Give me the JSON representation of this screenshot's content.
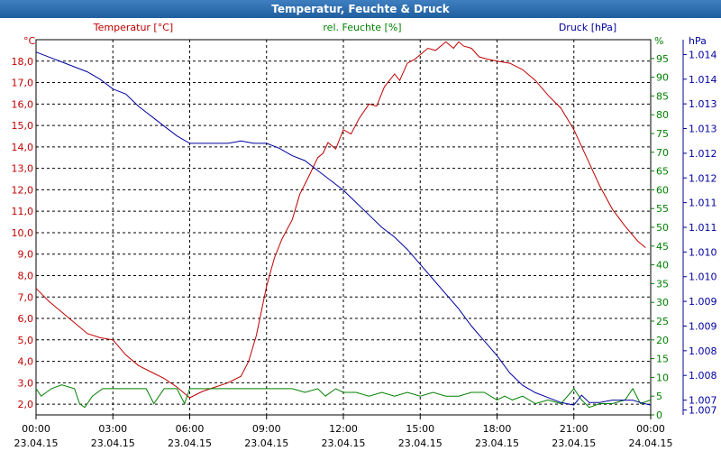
{
  "window": {
    "title": "Temperatur, Feuchte & Druck"
  },
  "chart_data": {
    "type": "line",
    "title": "Temperatur, Feuchte & Druck",
    "x_ticks": [
      {
        "t": 0,
        "time": "00:00",
        "date": "23.04.15"
      },
      {
        "t": 3,
        "time": "03:00",
        "date": "23.04.15"
      },
      {
        "t": 6,
        "time": "06:00",
        "date": "23.04.15"
      },
      {
        "t": 9,
        "time": "09:00",
        "date": "23.04.15"
      },
      {
        "t": 12,
        "time": "12:00",
        "date": "23.04.15"
      },
      {
        "t": 15,
        "time": "15:00",
        "date": "23.04.15"
      },
      {
        "t": 18,
        "time": "18:00",
        "date": "23.04.15"
      },
      {
        "t": 21,
        "time": "21:00",
        "date": "23.04.15"
      },
      {
        "t": 24,
        "time": "00:00",
        "date": "24.04.15"
      }
    ],
    "xlim": [
      0,
      24
    ],
    "axes": {
      "left": {
        "unit": "°C",
        "label": "Temperatur [°C]",
        "color": "#c00000",
        "ylim": [
          1.5,
          19.0
        ],
        "ticks": [
          "18,0",
          "17,0",
          "16,0",
          "15,0",
          "14,0",
          "13,0",
          "12,0",
          "11,0",
          "10,0",
          "9,0",
          "8,0",
          "7,0",
          "6,0",
          "5,0",
          "4,0",
          "3,0",
          "2,0"
        ],
        "tick_values": [
          18,
          17,
          16,
          15,
          14,
          13,
          12,
          11,
          10,
          9,
          8,
          7,
          6,
          5,
          4,
          3,
          2
        ]
      },
      "middle": {
        "unit": "%",
        "label": "rel. Feuchte [%]",
        "color": "#008000",
        "ylim": [
          0,
          100
        ],
        "ticks": [
          "95",
          "90",
          "85",
          "80",
          "75",
          "70",
          "65",
          "60",
          "55",
          "50",
          "45",
          "40",
          "35",
          "30",
          "25",
          "20",
          "15",
          "10",
          "5",
          "0"
        ],
        "tick_values": [
          95,
          90,
          85,
          80,
          75,
          70,
          65,
          60,
          55,
          50,
          45,
          40,
          35,
          30,
          25,
          20,
          15,
          10,
          5,
          0
        ]
      },
      "right": {
        "unit": "hPa",
        "label": "Druck [hPa]",
        "color": "#0000a0",
        "ylim": [
          1006.7,
          1014.3
        ],
        "ticks": [
          "1.014",
          "1.014",
          "1.013",
          "1.013",
          "1.012",
          "1.012",
          "1.011",
          "1.011",
          "1.010",
          "1.010",
          "1.009",
          "1.009",
          "1.008",
          "1.008",
          "1.007",
          "1.007"
        ],
        "tick_values": [
          1014.0,
          1013.5,
          1013.0,
          1012.5,
          1012.0,
          1011.5,
          1011.0,
          1010.5,
          1010.0,
          1009.5,
          1009.0,
          1008.5,
          1008.0,
          1007.5,
          1007.0,
          1006.8
        ]
      }
    },
    "series": [
      {
        "name": "Temperatur [°C]",
        "axis": "left",
        "color": "#c00000",
        "x": [
          0,
          0.5,
          1,
          1.5,
          2,
          2.5,
          3,
          3.5,
          4,
          4.5,
          5,
          5.5,
          6,
          6.5,
          7,
          7.5,
          8,
          8.3,
          8.6,
          9,
          9.3,
          9.6,
          10,
          10.3,
          10.6,
          11,
          11.2,
          11.4,
          11.7,
          12,
          12.3,
          12.6,
          13,
          13.3,
          13.6,
          14,
          14.2,
          14.5,
          14.8,
          15,
          15.3,
          15.6,
          16,
          16.3,
          16.5,
          16.7,
          17,
          17.3,
          17.6,
          18,
          18.5,
          19,
          19.5,
          20,
          20.5,
          21,
          21.5,
          22,
          22.5,
          23,
          23.5,
          23.8
        ],
        "values": [
          7.4,
          6.8,
          6.3,
          5.8,
          5.3,
          5.1,
          5.0,
          4.3,
          3.8,
          3.5,
          3.2,
          2.8,
          2.3,
          2.6,
          2.8,
          3.0,
          3.3,
          4.0,
          5.2,
          7.5,
          8.8,
          9.7,
          10.6,
          11.8,
          12.5,
          13.5,
          13.7,
          14.2,
          13.9,
          14.8,
          14.6,
          15.3,
          16.0,
          15.9,
          16.8,
          17.4,
          17.1,
          17.9,
          18.1,
          18.3,
          18.6,
          18.5,
          18.9,
          18.6,
          18.9,
          18.7,
          18.6,
          18.2,
          18.1,
          18.0,
          17.9,
          17.6,
          17.1,
          16.4,
          15.8,
          14.8,
          13.5,
          12.2,
          11.1,
          10.3,
          9.6,
          9.3
        ]
      },
      {
        "name": "rel. Feuchte [%]",
        "axis": "middle",
        "color": "#008000",
        "x": [
          0,
          0.2,
          0.6,
          1,
          1.5,
          1.7,
          1.9,
          2.2,
          2.6,
          3,
          4,
          4.3,
          4.6,
          5,
          5.5,
          5.8,
          6,
          6.5,
          7,
          8,
          9,
          10,
          10.5,
          11,
          11.3,
          11.7,
          12,
          12.5,
          13,
          13.5,
          14,
          14.5,
          15,
          15.5,
          16,
          16.5,
          17,
          17.5,
          18,
          18.3,
          18.6,
          19,
          19.5,
          20,
          20.5,
          21,
          21.3,
          21.6,
          22,
          22.5,
          23,
          23.3,
          23.6,
          24
        ],
        "values": [
          7,
          5,
          7,
          8,
          7,
          3,
          2,
          5,
          7,
          7,
          7,
          7,
          3,
          7,
          7,
          3,
          7,
          7,
          7,
          7,
          7,
          7,
          6,
          7,
          5,
          7,
          6,
          6,
          5,
          6,
          5,
          6,
          5,
          6,
          5,
          5,
          6,
          6,
          4,
          5,
          4,
          5,
          3,
          4,
          3,
          7,
          4,
          2,
          3,
          3,
          4,
          7,
          3,
          4
        ]
      },
      {
        "name": "Druck [hPa]",
        "axis": "right",
        "color": "#0000a0",
        "x": [
          0,
          0.5,
          1,
          1.5,
          2,
          2.5,
          3,
          3.5,
          4,
          4.5,
          5,
          5.5,
          6,
          6.5,
          7,
          7.5,
          8,
          8.5,
          9,
          9.5,
          10,
          10.5,
          11,
          11.5,
          12,
          12.5,
          13,
          13.5,
          14,
          14.5,
          15,
          15.5,
          16,
          16.5,
          17,
          17.5,
          18,
          18.5,
          19,
          19.5,
          20,
          20.5,
          21,
          21.3,
          21.6,
          22,
          22.5,
          23,
          23.3,
          23.6,
          24
        ],
        "values": [
          1014.05,
          1013.95,
          1013.85,
          1013.75,
          1013.65,
          1013.5,
          1013.3,
          1013.2,
          1012.95,
          1012.75,
          1012.55,
          1012.35,
          1012.2,
          1012.2,
          1012.2,
          1012.2,
          1012.25,
          1012.2,
          1012.2,
          1012.1,
          1011.95,
          1011.85,
          1011.65,
          1011.45,
          1011.25,
          1011.0,
          1010.75,
          1010.5,
          1010.3,
          1010.05,
          1009.75,
          1009.45,
          1009.15,
          1008.85,
          1008.5,
          1008.2,
          1007.9,
          1007.55,
          1007.3,
          1007.15,
          1007.05,
          1006.95,
          1006.9,
          1007.1,
          1006.95,
          1006.95,
          1007.0,
          1007.0,
          1007.0,
          1006.95,
          1006.9
        ]
      }
    ]
  }
}
